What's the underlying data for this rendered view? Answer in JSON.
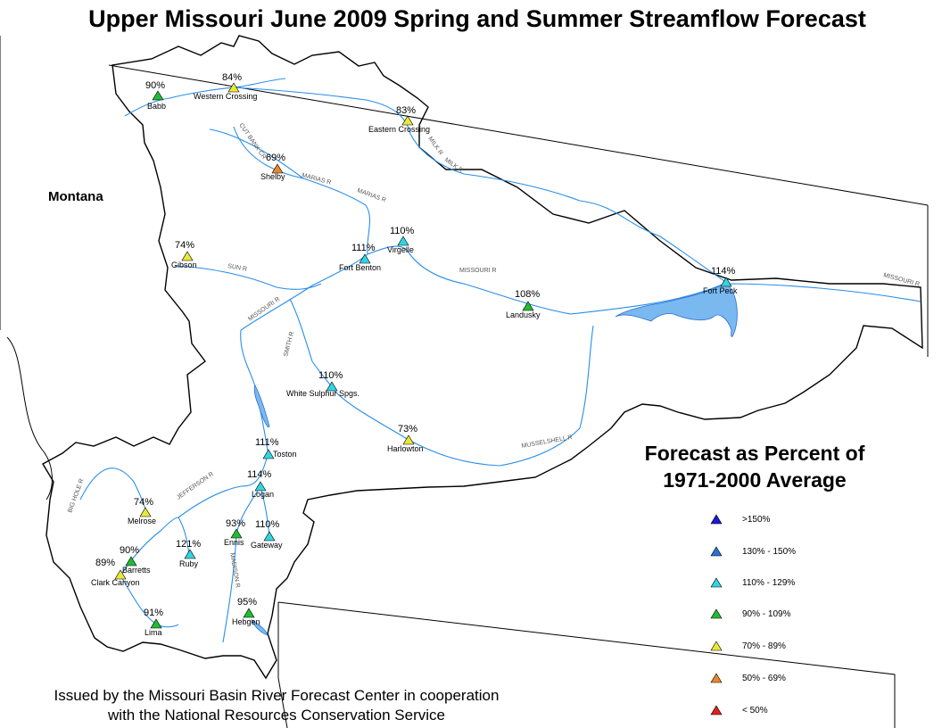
{
  "title": "Upper Missouri June 2009 Spring and Summer Streamflow Forecast",
  "state_label": "Montana",
  "legend": {
    "title_line1": "Forecast as Percent of",
    "title_line2": "1971-2000 Average",
    "items": [
      {
        "label": ">150%",
        "color": "#1a1ad4"
      },
      {
        "label": "130% - 150%",
        "color": "#2c6fd8"
      },
      {
        "label": "110% - 129%",
        "color": "#33d4e0"
      },
      {
        "label": "90% - 109%",
        "color": "#22bb33"
      },
      {
        "label": "70% - 89%",
        "color": "#e8e83a"
      },
      {
        "label": "50% - 69%",
        "color": "#e8882a"
      },
      {
        "label": "< 50%",
        "color": "#dd2020"
      }
    ]
  },
  "footer": {
    "line1": "Issued by the Missouri Basin River Forecast Center in cooperation",
    "line2": "with the National Resources Conservation Service"
  },
  "stations": [
    {
      "name": "Babb",
      "pct": "90%",
      "class": 3
    },
    {
      "name": "Western Crossing",
      "pct": "84%",
      "class": 4
    },
    {
      "name": "Eastern Crossing",
      "pct": "83%",
      "class": 4
    },
    {
      "name": "Shelby",
      "pct": "69%",
      "class": 5
    },
    {
      "name": "Gibson",
      "pct": "74%",
      "class": 4
    },
    {
      "name": "Fort Benton",
      "pct": "111%",
      "class": 2
    },
    {
      "name": "Virgelle",
      "pct": "110%",
      "class": 2
    },
    {
      "name": "Landusky",
      "pct": "108%",
      "class": 3
    },
    {
      "name": "Fort Peck",
      "pct": "114%",
      "class": 2
    },
    {
      "name": "White Sulphur Spgs.",
      "pct": "110%",
      "class": 2
    },
    {
      "name": "Harlowton",
      "pct": "73%",
      "class": 4
    },
    {
      "name": "Toston",
      "pct": "111%",
      "class": 2
    },
    {
      "name": "Logan",
      "pct": "114%",
      "class": 2
    },
    {
      "name": "Melrose",
      "pct": "74%",
      "class": 4
    },
    {
      "name": "Ennis",
      "pct": "93%",
      "class": 3
    },
    {
      "name": "Gateway",
      "pct": "110%",
      "class": 2
    },
    {
      "name": "Ruby",
      "pct": "121%",
      "class": 2
    },
    {
      "name": "Barretts",
      "pct": "90%",
      "class": 3
    },
    {
      "name": "Clark Canyon",
      "pct": "89%",
      "class": 4
    },
    {
      "name": "Lima",
      "pct": "91%",
      "class": 3
    },
    {
      "name": "Hebgen",
      "pct": "95%",
      "class": 3
    }
  ],
  "river_labels": [
    "CUT BANK CR",
    "MARIAS R",
    "MARIAS R",
    "MILK R",
    "MILK R",
    "SUN R",
    "MISSOURI R",
    "SMITH R",
    "MISSOURI R",
    "MISSOURI R",
    "MUSSELSHELL R",
    "JEFFERSON R",
    "BIG HOLE R",
    "MADISON R"
  ]
}
